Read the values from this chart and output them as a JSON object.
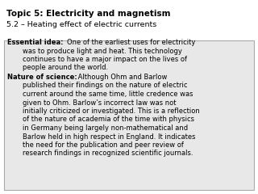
{
  "title_line1": "Topic 5: Electricity and magnetism",
  "title_line2": "5.2 – Heating effect of electric currents",
  "essential_label": "Essential idea:",
  "essential_text": " One of the earliest uses for electricity was to produce light and heat. This technology continues to have a major impact on the lives of people around the world.",
  "nature_label": "Nature of science:",
  "nature_text": "  Although Ohm and Barlow published their findings on the nature of electric current around the same time, little credence was given to Ohm. Barlow’s incorrect law was not initially criticized or investigated. This is a reflection of the nature of academia of the time with physics in Germany being largely non-mathematical and Barlow held in high respect in England. It indicates the need for the publication and peer review of research findings in recognized scientific journals.",
  "bg_color": "#e8e8e8",
  "title_bg": "#ffffff",
  "text_color": "#000000",
  "font_size_title1": 7.5,
  "font_size_title2": 6.8,
  "font_size_body": 6.0,
  "box_border_color": "#aaaaaa"
}
